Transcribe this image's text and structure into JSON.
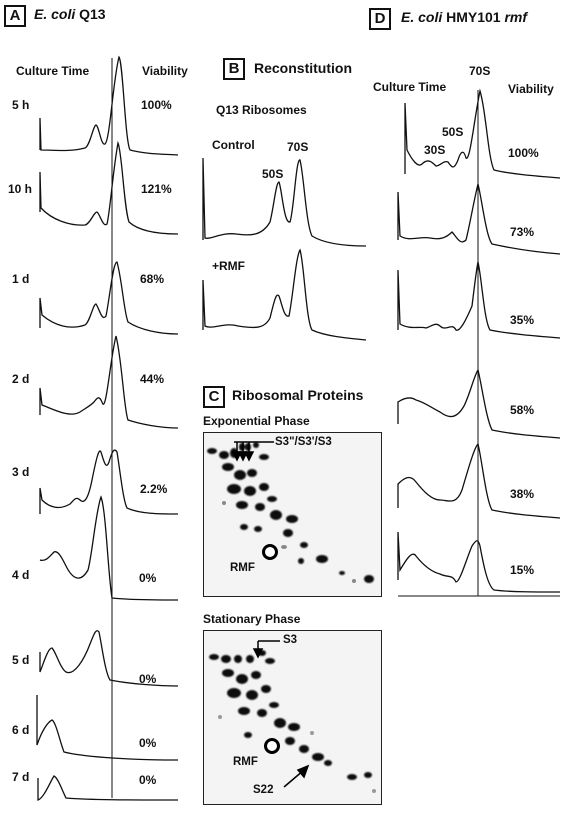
{
  "panel_a": {
    "letter": "A",
    "title_species": "E. coli",
    "title_strain": "Q13",
    "col_culture_time": "Culture Time",
    "col_viability": "Viability",
    "rows": [
      {
        "time": "5 h",
        "viability": "100%"
      },
      {
        "time": "10 h",
        "viability": "121%"
      },
      {
        "time": "1 d",
        "viability": "68%"
      },
      {
        "time": "2 d",
        "viability": "44%"
      },
      {
        "time": "3 d",
        "viability": "2.2%"
      },
      {
        "time": "4 d",
        "viability": "0%"
      },
      {
        "time": "5 d",
        "viability": "0%"
      },
      {
        "time": "6 d",
        "viability": "0%"
      },
      {
        "time": "7 d",
        "viability": "0%"
      }
    ]
  },
  "panel_b": {
    "letter": "B",
    "title": "Reconstitution",
    "subtitle": "Q13 Ribosomes",
    "control_label": "Control",
    "rmf_label": "+RMF",
    "peak_50s": "50S",
    "peak_70s": "70S"
  },
  "panel_c": {
    "letter": "C",
    "title": "Ribosomal Proteins",
    "exponential": {
      "phase_label": "Exponential Phase",
      "s3_label": "S3\"/S3'/S3",
      "rmf_label": "RMF"
    },
    "stationary": {
      "phase_label": "Stationary Phase",
      "s3_label": "S3",
      "rmf_label": "RMF",
      "s22_label": "S22"
    }
  },
  "panel_d": {
    "letter": "D",
    "title_species": "E. coli",
    "title_strain": "HMY101",
    "title_gene": "rmf",
    "col_culture_time": "Culture Time",
    "col_viability": "Viability",
    "peak_70s": "70S",
    "peak_50s": "50S",
    "peak_30s": "30S",
    "viabilities": [
      "100%",
      "73%",
      "35%",
      "58%",
      "38%",
      "15%"
    ]
  }
}
